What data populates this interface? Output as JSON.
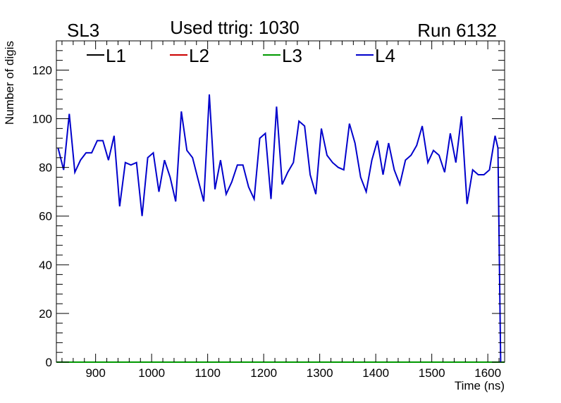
{
  "header": {
    "left": "SL3",
    "center": "Used ttrig: 1030",
    "right": "Run 6132"
  },
  "chart_data": {
    "type": "line",
    "title": "Used ttrig: 1030",
    "xlabel": "Time (ns)",
    "ylabel": "Number of digis",
    "xlim": [
      830,
      1630
    ],
    "ylim": [
      0,
      132
    ],
    "xticks": [
      900,
      1000,
      1100,
      1200,
      1300,
      1400,
      1500,
      1600
    ],
    "yticks": [
      0,
      20,
      40,
      60,
      80,
      100,
      120
    ],
    "grid": false,
    "legend_position": "top",
    "series": [
      {
        "name": "L1",
        "color": "#000000",
        "x": [
          830,
          1630
        ],
        "y": [
          0,
          0
        ]
      },
      {
        "name": "L2",
        "color": "#cc0000",
        "x": [
          830,
          1630
        ],
        "y": [
          0,
          0
        ]
      },
      {
        "name": "L3",
        "color": "#009900",
        "x": [
          830,
          1630
        ],
        "y": [
          0,
          0
        ]
      },
      {
        "name": "L4",
        "color": "#0000cc",
        "x": [
          833,
          843,
          853,
          863,
          873,
          883,
          893,
          903,
          913,
          923,
          933,
          943,
          953,
          963,
          973,
          983,
          993,
          1003,
          1013,
          1023,
          1033,
          1043,
          1053,
          1063,
          1073,
          1083,
          1093,
          1103,
          1113,
          1123,
          1133,
          1143,
          1153,
          1163,
          1173,
          1183,
          1193,
          1203,
          1213,
          1223,
          1233,
          1243,
          1253,
          1263,
          1273,
          1283,
          1293,
          1303,
          1313,
          1323,
          1333,
          1343,
          1353,
          1363,
          1373,
          1383,
          1393,
          1403,
          1413,
          1423,
          1433,
          1443,
          1453,
          1463,
          1473,
          1483,
          1493,
          1503,
          1513,
          1523,
          1533,
          1543,
          1553,
          1563,
          1573,
          1583,
          1593,
          1603,
          1613,
          1618,
          1623
        ],
        "y": [
          88,
          79,
          102,
          78,
          83,
          86,
          86,
          91,
          91,
          83,
          93,
          64,
          82,
          81,
          82,
          60,
          84,
          86,
          70,
          83,
          76,
          66,
          103,
          87,
          84,
          75,
          66,
          110,
          71,
          83,
          69,
          74,
          81,
          81,
          72,
          67,
          92,
          94,
          67,
          105,
          73,
          78,
          82,
          99,
          97,
          77,
          69,
          96,
          85,
          82,
          80,
          79,
          98,
          90,
          76,
          70,
          83,
          91,
          77,
          90,
          79,
          73,
          83,
          85,
          89,
          97,
          82,
          87,
          85,
          78,
          94,
          82,
          101,
          65,
          79,
          77,
          77,
          79,
          93,
          88,
          0
        ]
      }
    ]
  }
}
